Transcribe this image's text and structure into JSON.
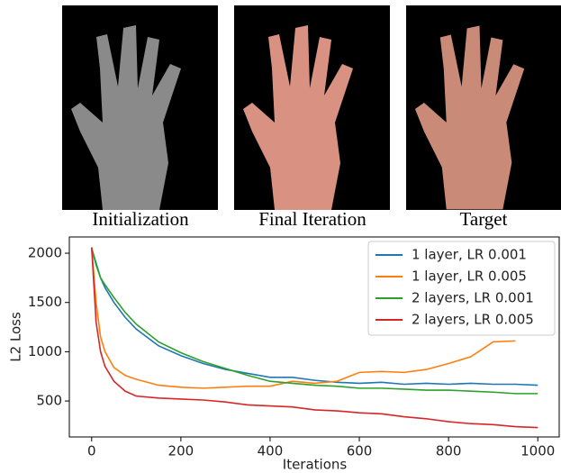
{
  "panels": [
    {
      "caption": "Initialization"
    },
    {
      "caption": "Final Iteration"
    },
    {
      "caption": "Target"
    }
  ],
  "chart_data": {
    "type": "line",
    "xlabel": "Iterations",
    "ylabel": "L2 Loss",
    "x": [
      0,
      10,
      20,
      30,
      50,
      75,
      100,
      150,
      200,
      250,
      300,
      350,
      400,
      450,
      500,
      550,
      600,
      650,
      700,
      750,
      800,
      850,
      900,
      950,
      1000
    ],
    "series": [
      {
        "name": "1 layer, LR 0.001",
        "color": "#1f77b4",
        "values": [
          2050,
          1900,
          1750,
          1650,
          1500,
          1350,
          1230,
          1060,
          960,
          880,
          820,
          780,
          740,
          740,
          710,
          690,
          680,
          690,
          670,
          680,
          670,
          680,
          670,
          670,
          660
        ]
      },
      {
        "name": "1 layer, LR 0.005",
        "color": "#ff7f0e",
        "values": [
          2060,
          1500,
          1150,
          1000,
          840,
          760,
          720,
          660,
          640,
          630,
          640,
          650,
          650,
          700,
          680,
          700,
          790,
          800,
          790,
          820,
          880,
          950,
          1100,
          1110,
          null
        ]
      },
      {
        "name": "2 layers, LR 0.001",
        "color": "#2ca02c",
        "values": [
          2050,
          1880,
          1750,
          1680,
          1550,
          1400,
          1280,
          1100,
          990,
          900,
          830,
          760,
          700,
          680,
          660,
          650,
          630,
          630,
          620,
          610,
          610,
          600,
          590,
          575,
          575
        ]
      },
      {
        "name": "2 layers, LR 0.005",
        "color": "#d62728",
        "values": [
          2060,
          1300,
          1000,
          850,
          700,
          600,
          550,
          530,
          520,
          510,
          490,
          460,
          450,
          440,
          410,
          400,
          380,
          370,
          340,
          320,
          290,
          270,
          260,
          240,
          230
        ]
      }
    ],
    "xlim": [
      -50,
      1050
    ],
    "ylim": [
      135,
      2165
    ],
    "xticks": [
      0,
      200,
      400,
      600,
      800,
      1000
    ],
    "yticks": [
      500,
      1000,
      1500,
      2000
    ],
    "grid": false,
    "legend": "upper right"
  }
}
